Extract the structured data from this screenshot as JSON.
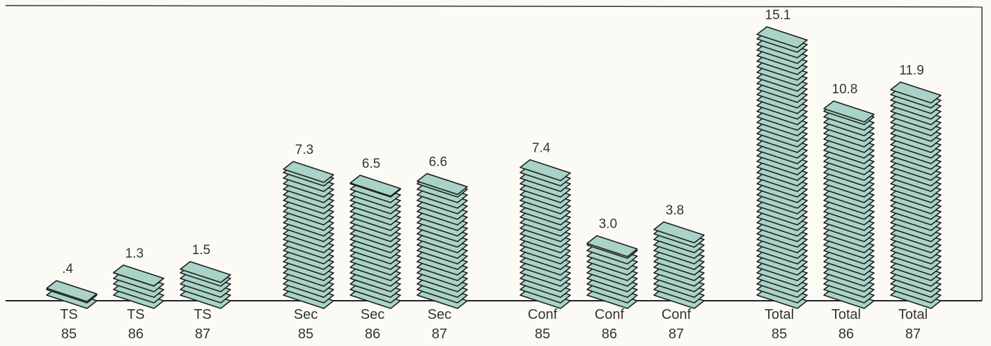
{
  "chart_data": {
    "type": "pictograph-bar",
    "categories": [
      "TS 85",
      "TS 86",
      "TS 87",
      "Sec 85",
      "Sec 86",
      "Sec 87",
      "Conf 85",
      "Conf 86",
      "Conf 87",
      "Total 85",
      "Total 86",
      "Total 87"
    ],
    "values": [
      0.4,
      1.3,
      1.5,
      7.3,
      6.5,
      6.6,
      7.4,
      3.0,
      3.8,
      15.1,
      10.8,
      11.9
    ],
    "value_labels": [
      ".4",
      "1.3",
      "1.5",
      "7.3",
      "6.5",
      "6.6",
      "7.4",
      "3.0",
      "3.8",
      "15.1",
      "10.8",
      "11.9"
    ],
    "color": "#a9d3c7"
  }
}
